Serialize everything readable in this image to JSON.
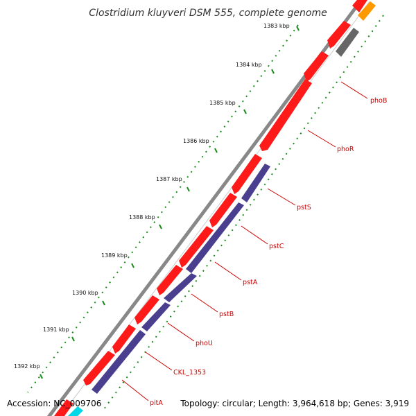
{
  "title": "Clostridium kluyveri DSM 555, complete genome",
  "footer": {
    "accession": "Accession: NC_009706",
    "summary": "Topology: circular; Length: 3,964,618 bp; Genes: 3,919"
  },
  "kbp_labels": [
    "1383 kbp",
    "1384 kbp",
    "1385 kbp",
    "1386 kbp",
    "1387 kbp",
    "1388 kbp",
    "1389 kbp",
    "1390 kbp",
    "1391 kbp",
    "1392 kbp"
  ],
  "gene_labels": [
    "phoB",
    "phoR",
    "pstS",
    "pstC",
    "pstA",
    "pstB",
    "phoU",
    "CKL_1353",
    "pitA"
  ],
  "colors": {
    "gene_forward": "#ff1a1a",
    "gene_reverse": "#4a3f8f",
    "backbone": "#888888",
    "tick_dots": "#1a8a1a",
    "label": "#cc0000",
    "other_gene": "#ff9900",
    "pseudo": "#666666",
    "accent_cyan": "#00d8e8"
  }
}
